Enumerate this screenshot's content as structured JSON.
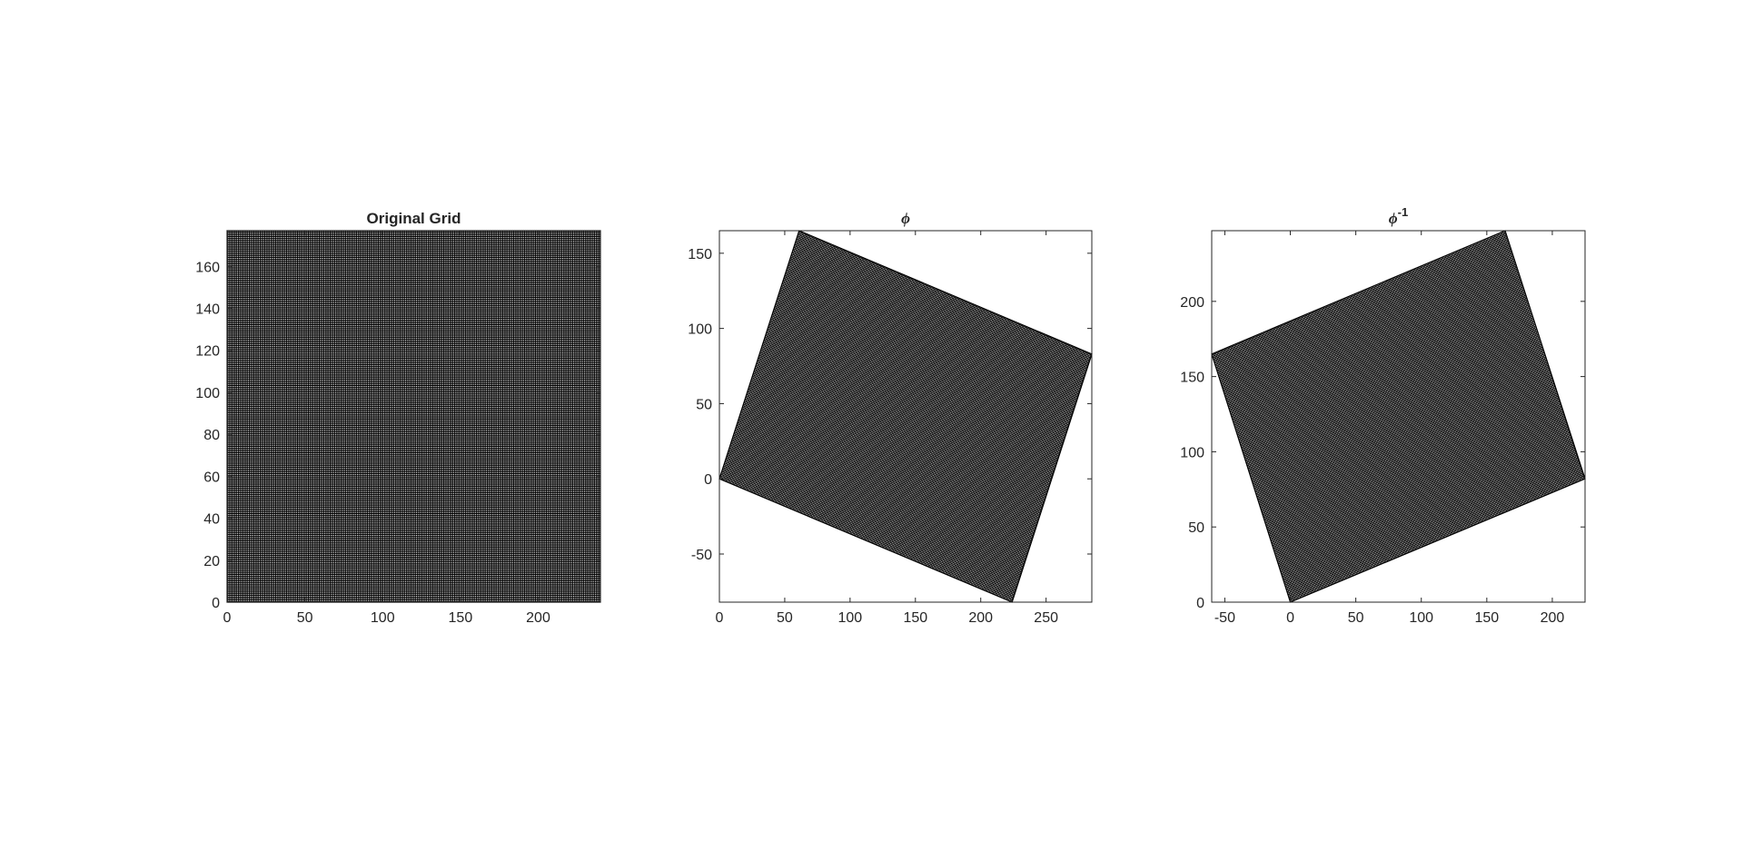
{
  "figure": {
    "background": "#ffffff",
    "grid_line_color": "#000000",
    "grid_gap_color": "#ffffff",
    "axes_color": "#262626"
  },
  "chart_data": [
    {
      "type": "line",
      "subtype": "mesh-grid",
      "title": "Original Grid",
      "xlabel": "",
      "ylabel": "",
      "xlim": [
        0,
        240
      ],
      "ylim": [
        0,
        177
      ],
      "xticks": [
        0,
        50,
        100,
        150,
        200
      ],
      "yticks": [
        0,
        20,
        40,
        60,
        80,
        100,
        120,
        140,
        160
      ],
      "grid_size": [
        240,
        177
      ],
      "grid_step": 1,
      "corners": [
        [
          0,
          0
        ],
        [
          240,
          0
        ],
        [
          240,
          177
        ],
        [
          0,
          177
        ]
      ]
    },
    {
      "type": "line",
      "subtype": "mesh-grid",
      "title": "ϕ",
      "xlabel": "",
      "ylabel": "",
      "xlim": [
        0,
        285
      ],
      "ylim": [
        -82,
        165
      ],
      "xticks": [
        0,
        50,
        100,
        150,
        200,
        250
      ],
      "yticks": [
        -50,
        0,
        50,
        100,
        150
      ],
      "grid_size": [
        240,
        177
      ],
      "grid_step": 1,
      "corners": [
        [
          0,
          0
        ],
        [
          224,
          -82
        ],
        [
          285,
          83
        ],
        [
          61,
          165
        ]
      ]
    },
    {
      "type": "line",
      "subtype": "mesh-grid",
      "title": "ϕ",
      "title_superscript": "-1",
      "xlabel": "",
      "ylabel": "",
      "xlim": [
        -60,
        225
      ],
      "ylim": [
        0,
        247
      ],
      "xticks": [
        -50,
        0,
        50,
        100,
        150,
        200
      ],
      "yticks": [
        0,
        50,
        100,
        150,
        200
      ],
      "grid_size": [
        240,
        177
      ],
      "grid_step": 1,
      "corners": [
        [
          0,
          0
        ],
        [
          225,
          82
        ],
        [
          164,
          247
        ],
        [
          -60,
          165
        ]
      ]
    }
  ]
}
